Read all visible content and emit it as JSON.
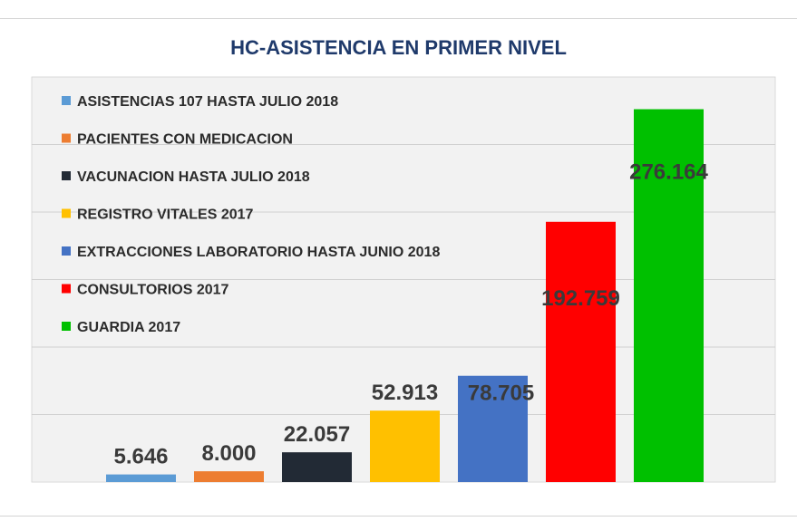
{
  "chart_data": {
    "type": "bar",
    "title": "HC-ASISTENCIA EN PRIMER NIVEL",
    "ylim": [
      0,
      300000
    ],
    "grid": true,
    "legend_position": "top-left",
    "series": [
      {
        "name": "ASISTENCIAS 107 HASTA JULIO 2018",
        "value": 5646,
        "label": "5.646",
        "color": "#5b9bd5"
      },
      {
        "name": "PACIENTES CON MEDICACION",
        "value": 8000,
        "label": "8.000",
        "color": "#ed7d31"
      },
      {
        "name": "VACUNACION HASTA JULIO 2018",
        "value": 22057,
        "label": "22.057",
        "color": "#222a35"
      },
      {
        "name": "REGISTRO VITALES 2017",
        "value": 52913,
        "label": "52.913",
        "color": "#ffc000"
      },
      {
        "name": "EXTRACCIONES LABORATORIO HASTA JUNIO 2018",
        "value": 78705,
        "label": "78.705",
        "color": "#4472c4"
      },
      {
        "name": "CONSULTORIOS 2017",
        "value": 192759,
        "label": "192.759",
        "color": "#ff0000"
      },
      {
        "name": "GUARDIA 2017",
        "value": 276164,
        "label": "276.164",
        "color": "#00c000"
      }
    ]
  }
}
